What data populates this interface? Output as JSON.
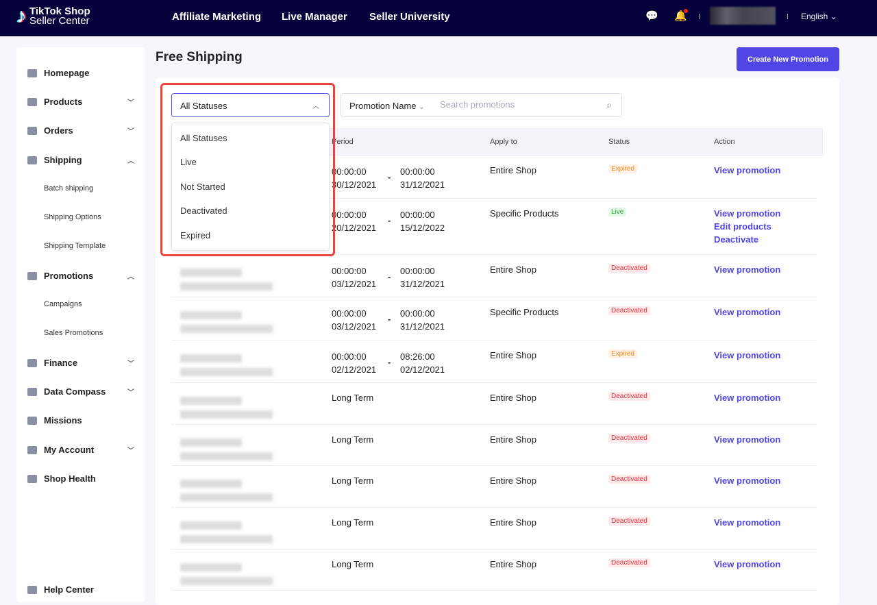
{
  "header": {
    "logo_line1": "TikTok Shop",
    "logo_line2": "Seller Center",
    "nav": [
      "Affiliate Marketing",
      "Live Manager",
      "Seller University"
    ],
    "language": "English",
    "notification_dot_color": "#ff2222"
  },
  "sidebar": {
    "items": [
      {
        "label": "Homepage",
        "icon": "home-icon",
        "chevron": ""
      },
      {
        "label": "Products",
        "icon": "bag-icon",
        "chevron": "down"
      },
      {
        "label": "Orders",
        "icon": "orders-icon",
        "chevron": "down"
      },
      {
        "label": "Shipping",
        "icon": "truck-icon",
        "chevron": "up",
        "children": [
          "Batch shipping",
          "Shipping Options",
          "Shipping Template"
        ]
      },
      {
        "label": "Promotions",
        "icon": "megaphone-icon",
        "chevron": "up",
        "children": [
          "Campaigns",
          "Sales Promotions"
        ]
      },
      {
        "label": "Finance",
        "icon": "card-icon",
        "chevron": "down"
      },
      {
        "label": "Data Compass",
        "icon": "chart-icon",
        "chevron": "down"
      },
      {
        "label": "Missions",
        "icon": "medal-icon",
        "chevron": ""
      },
      {
        "label": "My Account",
        "icon": "user-icon",
        "chevron": "down"
      },
      {
        "label": "Shop Health",
        "icon": "trophy-icon",
        "chevron": ""
      },
      {
        "label": "Help Center",
        "icon": "help-icon",
        "chevron": ""
      }
    ]
  },
  "page": {
    "title": "Free Shipping",
    "create_button": "Create New Promotion"
  },
  "filters": {
    "status_value": "All Statuses",
    "status_options": [
      "All Statuses",
      "Live",
      "Not Started",
      "Deactivated",
      "Expired"
    ],
    "search_field": "Promotion Name",
    "search_placeholder": "Search promotions"
  },
  "table": {
    "headers": {
      "period": "Period",
      "apply_to": "Apply to",
      "status": "Status",
      "action": "Action"
    },
    "rows": [
      {
        "start_time": "00:00:00",
        "start_date": "30/12/2021",
        "end_time": "00:00:00",
        "end_date": "31/12/2021",
        "apply_to": "Entire Shop",
        "status": "Expired",
        "actions": [
          "View promotion"
        ]
      },
      {
        "start_time": "00:00:00",
        "start_date": "20/12/2021",
        "end_time": "00:00:00",
        "end_date": "15/12/2022",
        "apply_to": "Specific Products",
        "status": "Live",
        "actions": [
          "View promotion",
          "Edit products",
          "Deactivate"
        ]
      },
      {
        "start_time": "00:00:00",
        "start_date": "03/12/2021",
        "end_time": "00:00:00",
        "end_date": "31/12/2021",
        "apply_to": "Entire Shop",
        "status": "Deactivated",
        "actions": [
          "View promotion"
        ]
      },
      {
        "start_time": "00:00:00",
        "start_date": "03/12/2021",
        "end_time": "00:00:00",
        "end_date": "31/12/2021",
        "apply_to": "Specific Products",
        "status": "Deactivated",
        "actions": [
          "View promotion"
        ]
      },
      {
        "start_time": "00:00:00",
        "start_date": "02/12/2021",
        "end_time": "08:26:00",
        "end_date": "02/12/2021",
        "apply_to": "Entire Shop",
        "status": "Expired",
        "actions": [
          "View promotion"
        ]
      },
      {
        "period": "Long Term",
        "apply_to": "Entire Shop",
        "status": "Deactivated",
        "actions": [
          "View promotion"
        ]
      },
      {
        "period": "Long Term",
        "apply_to": "Entire Shop",
        "status": "Deactivated",
        "actions": [
          "View promotion"
        ]
      },
      {
        "period": "Long Term",
        "apply_to": "Entire Shop",
        "status": "Deactivated",
        "actions": [
          "View promotion"
        ]
      },
      {
        "period": "Long Term",
        "apply_to": "Entire Shop",
        "status": "Deactivated",
        "actions": [
          "View promotion"
        ]
      },
      {
        "period": "Long Term",
        "apply_to": "Entire Shop",
        "status": "Deactivated",
        "actions": [
          "View promotion"
        ]
      }
    ]
  }
}
